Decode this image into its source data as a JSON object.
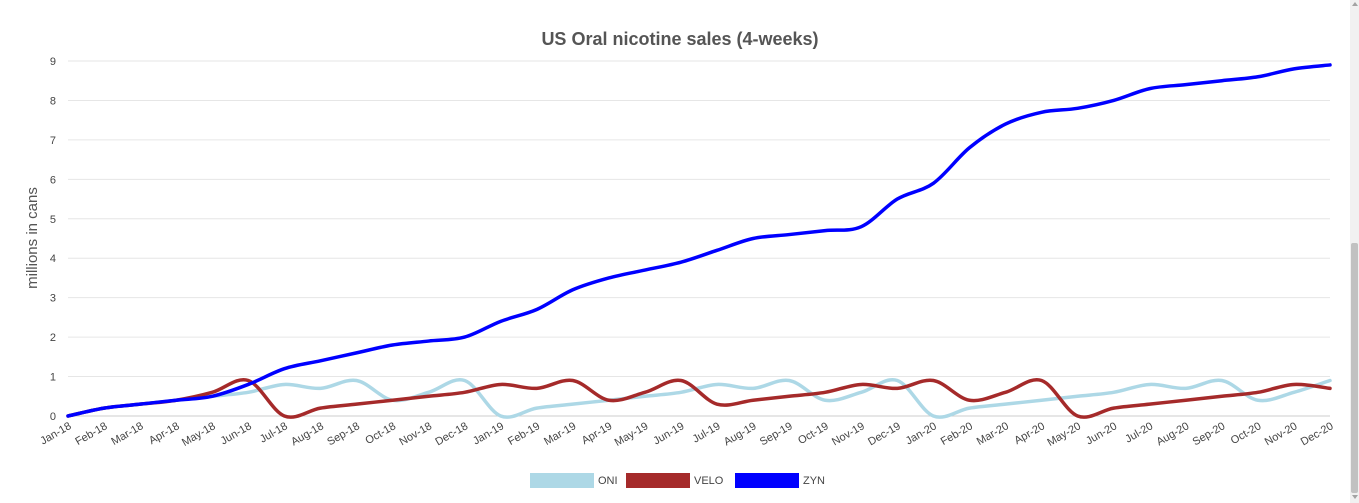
{
  "chart_data": {
    "type": "line",
    "title": "US Oral nicotine sales (4-weeks)",
    "xlabel": "",
    "ylabel": "millions in cans",
    "ylim": [
      0,
      9
    ],
    "yticks": [
      0,
      1,
      2,
      3,
      4,
      5,
      6,
      7,
      8,
      9
    ],
    "grid": true,
    "legend_position": "bottom-center",
    "categories": [
      "Jan-18",
      "Feb-18",
      "Mar-18",
      "Apr-18",
      "May-18",
      "Jun-18",
      "Jul-18",
      "Aug-18",
      "Sep-18",
      "Oct-18",
      "Nov-18",
      "Dec-18",
      "Jan-19",
      "Feb-19",
      "Mar-19",
      "Apr-19",
      "May-19",
      "Jun-19",
      "Jul-19",
      "Aug-19",
      "Sep-19",
      "Oct-19",
      "Nov-19",
      "Dec-19",
      "Jan-20",
      "Feb-20",
      "Mar-20",
      "Apr-20",
      "May-20",
      "Jun-20",
      "Jul-20",
      "Aug-20",
      "Sep-20",
      "Oct-20",
      "Nov-20",
      "Dec-20"
    ],
    "series": [
      {
        "name": "ONI",
        "color": "#add8e6",
        "values": [
          0,
          0.2,
          0.3,
          0.4,
          0.5,
          0.6,
          0.8,
          0.7,
          0.9,
          0.4,
          0.6,
          0.9,
          0,
          0.2,
          0.3,
          0.4,
          0.5,
          0.6,
          0.8,
          0.7,
          0.9,
          0.4,
          0.6,
          0.9,
          0,
          0.2,
          0.3,
          0.4,
          0.5,
          0.6,
          0.8,
          0.7,
          0.9,
          0.4,
          0.6,
          0.9
        ]
      },
      {
        "name": "VELO",
        "color": "#a52a2a",
        "values": [
          0,
          0.2,
          0.3,
          0.4,
          0.6,
          0.9,
          0,
          0.2,
          0.3,
          0.4,
          0.5,
          0.6,
          0.8,
          0.7,
          0.9,
          0.4,
          0.6,
          0.9,
          0.3,
          0.4,
          0.5,
          0.6,
          0.8,
          0.7,
          0.9,
          0.4,
          0.6,
          0.9,
          0,
          0.2,
          0.3,
          0.4,
          0.5,
          0.6,
          0.8,
          0.7
        ]
      },
      {
        "name": "ZYN",
        "color": "#0000ff",
        "values": [
          0,
          0.2,
          0.3,
          0.4,
          0.5,
          0.8,
          1.2,
          1.4,
          1.6,
          1.8,
          1.9,
          2.0,
          2.4,
          2.7,
          3.2,
          3.5,
          3.7,
          3.9,
          4.2,
          4.5,
          4.6,
          4.7,
          4.8,
          5.5,
          5.9,
          6.8,
          7.4,
          7.7,
          7.8,
          8.0,
          8.3,
          8.4,
          8.5,
          8.6,
          8.8,
          8.9
        ]
      }
    ]
  }
}
